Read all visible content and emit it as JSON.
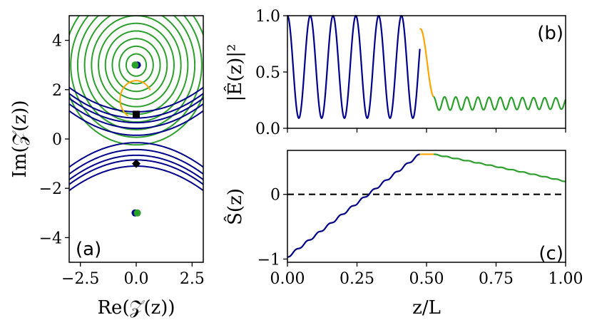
{
  "colors": {
    "blue": "#00008b",
    "green": "#2ca02c",
    "orange": "#ffa500",
    "black": "#000000"
  },
  "chart_data": [
    {
      "id": "a",
      "type": "contour",
      "panel_label": "(a)",
      "xlabel": "Re(𝒵(z))",
      "ylabel": "Im(𝒵(z))",
      "xlim": [
        -3,
        3
      ],
      "ylim": [
        -5,
        5
      ],
      "xticks": [
        {
          "v": -2.5,
          "label": "−2.5"
        },
        {
          "v": 0,
          "label": "0.0"
        },
        {
          "v": 2.5,
          "label": "2.5"
        }
      ],
      "yticks": [
        {
          "v": 4,
          "label": "4"
        },
        {
          "v": 2,
          "label": "2"
        },
        {
          "v": 0,
          "label": "0"
        },
        {
          "v": -2,
          "label": "−2"
        },
        {
          "v": -4,
          "label": "−4"
        }
      ],
      "green_circles": {
        "center": [
          0,
          3
        ],
        "count": 10,
        "r_min": 0.45,
        "r_step": 0.31
      },
      "blue_curves_upper": [
        0.15,
        0.43,
        0.66,
        0.85,
        1.1
      ],
      "blue_curves_lower": [
        -0.15,
        -0.43,
        -0.66,
        -0.85,
        -1.1
      ],
      "orange_arc": {
        "center": [
          0,
          1.6
        ],
        "r": 0.85
      },
      "points": [
        {
          "name": "pole-upper-blue",
          "x": 0.05,
          "y": 3,
          "color": "blue",
          "marker": "circle"
        },
        {
          "name": "pole-upper-green",
          "x": -0.05,
          "y": 3,
          "color": "green",
          "marker": "circle"
        },
        {
          "name": "pole-lower-blue",
          "x": -0.05,
          "y": -3,
          "color": "blue",
          "marker": "circle"
        },
        {
          "name": "pole-lower-green",
          "x": 0.05,
          "y": -3,
          "color": "green",
          "marker": "circle"
        },
        {
          "name": "square-marker",
          "x": 0,
          "y": 1,
          "color": "black",
          "marker": "square"
        },
        {
          "name": "diamond-marker",
          "x": 0,
          "y": -1,
          "color": "black",
          "marker": "diamond"
        }
      ]
    },
    {
      "id": "b",
      "type": "line",
      "panel_label": "(b)",
      "ylabel": "|Ê(z)|²",
      "xlim": [
        0,
        1
      ],
      "ylim": [
        0,
        1
      ],
      "yticks": [
        {
          "v": 0,
          "label": "0.0"
        },
        {
          "v": 0.5,
          "label": "0.5"
        },
        {
          "v": 1,
          "label": "1.0"
        }
      ],
      "series": [
        {
          "name": "region-1",
          "color": "blue",
          "x_range": [
            0,
            0.476
          ],
          "form": "1-0.455*(1-cos(2*pi*12.2*z))"
        },
        {
          "name": "transition",
          "color": "orange",
          "x_range": [
            0.476,
            0.525
          ],
          "from": 0.88,
          "to": 0.28
        },
        {
          "name": "region-2",
          "color": "green",
          "x_range": [
            0.525,
            1
          ],
          "center": 0.22,
          "amp_start": 0.06,
          "amp_end": 0.05,
          "cycles_per_unit": 25
        }
      ]
    },
    {
      "id": "c",
      "type": "line",
      "panel_label": "(c)",
      "ylabel": "Ŝ(z)",
      "xlabel": "z/L",
      "xlim": [
        0,
        1
      ],
      "ylim": [
        -1.05,
        0.68
      ],
      "xticks": [
        {
          "v": 0,
          "label": "0.00"
        },
        {
          "v": 0.25,
          "label": "0.25"
        },
        {
          "v": 0.5,
          "label": "0.50"
        },
        {
          "v": 0.75,
          "label": "0.75"
        },
        {
          "v": 1,
          "label": "1.00"
        }
      ],
      "yticks": [
        {
          "v": 0,
          "label": "0"
        },
        {
          "v": -1,
          "label": "−1"
        }
      ],
      "reference_line": {
        "y": 0,
        "style": "dashed",
        "color": "black"
      },
      "series": [
        {
          "name": "region-1",
          "color": "blue",
          "x_range": [
            0,
            0.476
          ],
          "y_start": -0.97,
          "y_end": 0.62,
          "step_cycles": 12
        },
        {
          "name": "plateau",
          "color": "orange",
          "x_range": [
            0.476,
            0.525
          ],
          "y": 0.62
        },
        {
          "name": "region-2",
          "color": "green",
          "x_range": [
            0.525,
            1
          ],
          "y_start": 0.62,
          "y_end": 0.2
        }
      ]
    }
  ]
}
